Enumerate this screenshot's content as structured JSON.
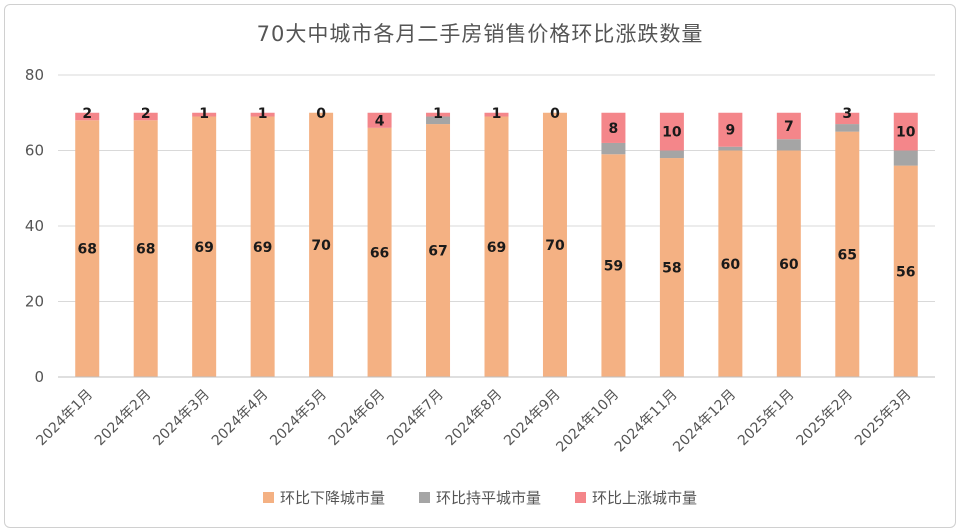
{
  "chart_data": {
    "type": "bar",
    "stacked": true,
    "title": "70大中城市各月二手房销售价格环比涨跌数量",
    "categories": [
      "2024年1月",
      "2024年2月",
      "2024年3月",
      "2024年4月",
      "2024年5月",
      "2024年6月",
      "2024年7月",
      "2024年8月",
      "2024年9月",
      "2024年10月",
      "2024年11月",
      "2024年12月",
      "2025年1月",
      "2025年2月",
      "2025年3月"
    ],
    "series": [
      {
        "name": "环比下降城市量",
        "color": "#f4b183",
        "values": [
          68,
          68,
          69,
          69,
          70,
          66,
          67,
          69,
          70,
          59,
          58,
          60,
          60,
          65,
          56
        ],
        "labels": [
          "68",
          "68",
          "69",
          "69",
          "70",
          "66",
          "67",
          "69",
          "70",
          "59",
          "58",
          "60",
          "60",
          "65",
          "56"
        ]
      },
      {
        "name": "环比持平城市量",
        "color": "#a5a5a5",
        "values": [
          0,
          0,
          0,
          0,
          0,
          0,
          2,
          0,
          0,
          3,
          2,
          1,
          3,
          2,
          4
        ],
        "labels": []
      },
      {
        "name": "环比上涨城市量",
        "color": "#f4868a",
        "values": [
          2,
          2,
          1,
          1,
          0,
          4,
          1,
          1,
          0,
          8,
          10,
          9,
          7,
          3,
          10
        ],
        "labels": [
          "2",
          "2",
          "1",
          "1",
          "0",
          "4",
          "1",
          "1",
          "0",
          "8",
          "10",
          "9",
          "7",
          "3",
          "10"
        ]
      }
    ],
    "yticks": [
      "0",
      "20",
      "40",
      "60",
      "80"
    ],
    "ylim": [
      0,
      80
    ],
    "grid": true,
    "legend": "bottom",
    "xlabel": "",
    "ylabel": ""
  }
}
